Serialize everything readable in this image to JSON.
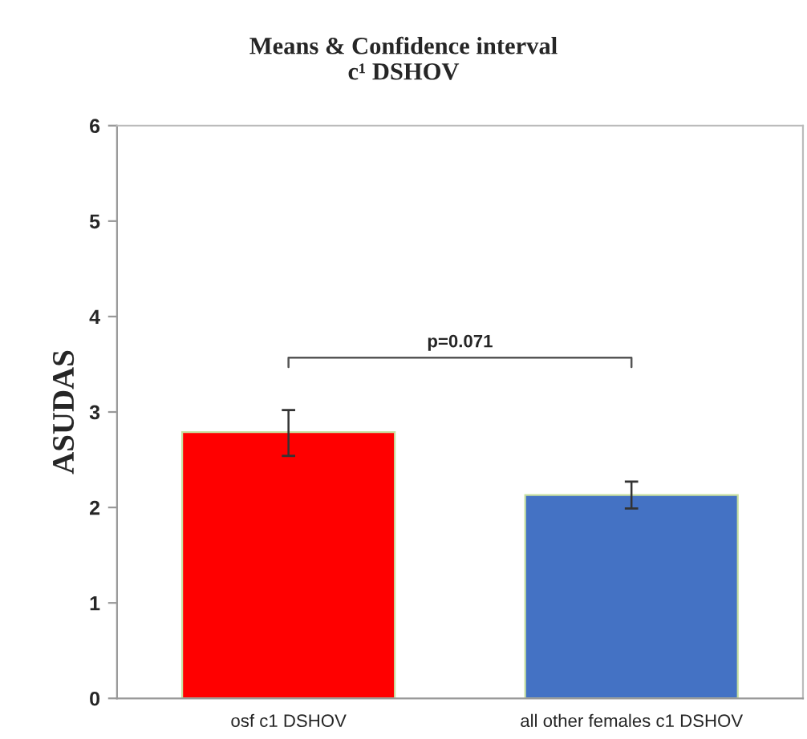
{
  "chart_data": {
    "type": "bar",
    "title": "Means & Confidence interval\nc¹ DSHOV",
    "ylabel": "ASUDAS",
    "categories": [
      "osf c1 DSHOV",
      "all other females c1 DSHOV"
    ],
    "values": [
      2.79,
      2.13
    ],
    "colors": [
      "#ff0000",
      "#4472c4"
    ],
    "errors": [
      [
        2.54,
        3.02
      ],
      [
        1.99,
        2.27
      ]
    ],
    "ylim": [
      0,
      6
    ],
    "yticks": [
      0,
      1,
      2,
      3,
      4,
      5,
      6
    ],
    "grid": false,
    "annotations": [
      "p=0.071"
    ]
  }
}
